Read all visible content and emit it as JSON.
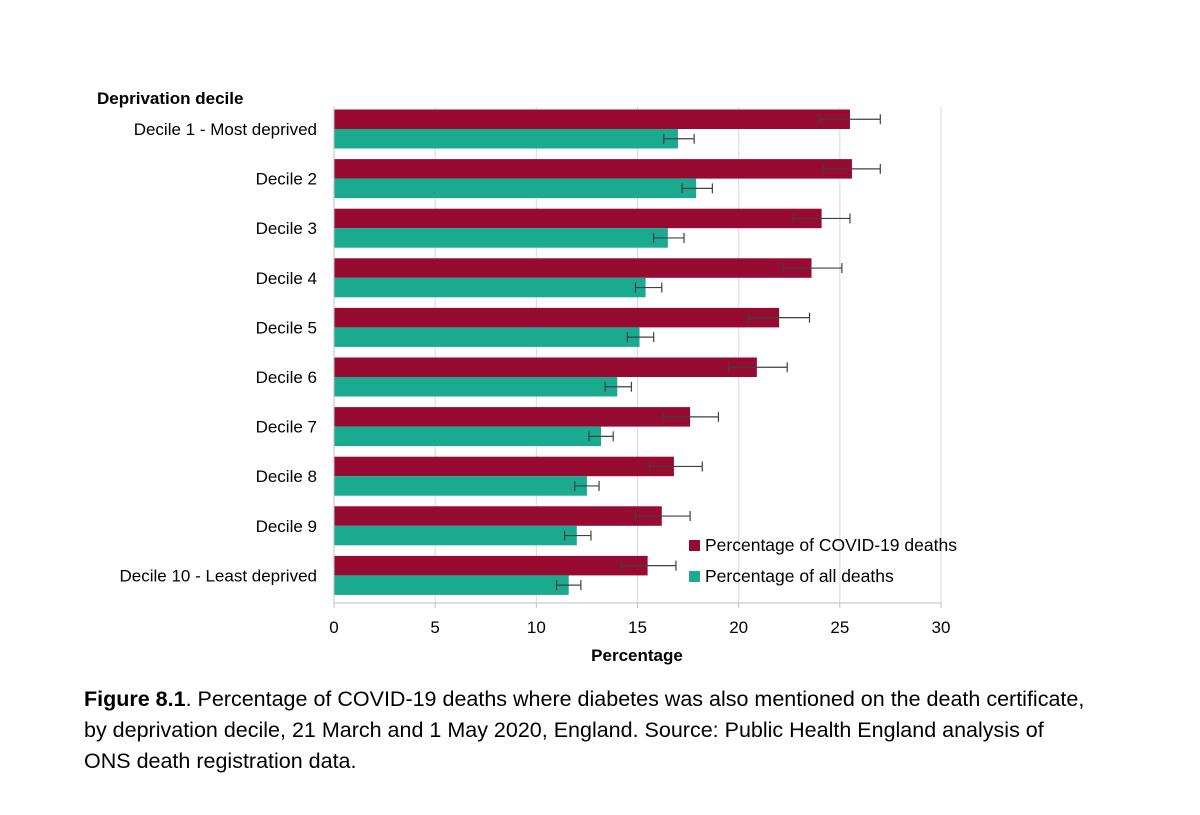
{
  "chart_data": {
    "type": "bar",
    "orientation": "horizontal",
    "ytitle": "Deprivation decile",
    "xlabel": "Percentage",
    "categories": [
      "Decile 1 - Most deprived",
      "Decile 2",
      "Decile 3",
      "Decile 4",
      "Decile 5",
      "Decile 6",
      "Decile 7",
      "Decile 8",
      "Decile 9",
      "Decile 10 - Least deprived"
    ],
    "xlim": [
      0,
      30
    ],
    "xticks": [
      0,
      5,
      10,
      15,
      20,
      25,
      30
    ],
    "grid": "vertical",
    "legend_position": "bottom-right",
    "series": [
      {
        "name": "Percentage of COVID-19 deaths",
        "color": "#970A31",
        "values": [
          25.5,
          25.6,
          24.1,
          23.6,
          22.0,
          20.9,
          17.6,
          16.8,
          16.2,
          15.5
        ],
        "error_low": [
          24.0,
          24.2,
          22.7,
          22.2,
          20.5,
          19.5,
          16.3,
          15.6,
          14.9,
          14.2
        ],
        "error_high": [
          27.0,
          27.0,
          25.5,
          25.1,
          23.5,
          22.4,
          19.0,
          18.2,
          17.6,
          16.9
        ]
      },
      {
        "name": "Percentage of all deaths",
        "color": "#1AAA90",
        "values": [
          17.0,
          17.9,
          16.5,
          15.4,
          15.1,
          14.0,
          13.2,
          12.5,
          12.0,
          11.6
        ],
        "error_low": [
          16.3,
          17.2,
          15.8,
          14.9,
          14.5,
          13.4,
          12.6,
          11.9,
          11.4,
          11.0
        ],
        "error_high": [
          17.8,
          18.7,
          17.3,
          16.2,
          15.8,
          14.7,
          13.8,
          13.1,
          12.7,
          12.2
        ]
      }
    ]
  },
  "caption": {
    "label": "Figure 8.1",
    "text": ". Percentage of COVID-19 deaths where diabetes was also mentioned on the death certificate, by deprivation decile, 21 March and 1 May 2020, England. Source: Public Health England analysis of ONS death registration data."
  }
}
